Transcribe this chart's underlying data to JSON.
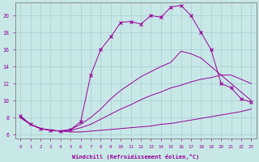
{
  "xlabel": "Windchill (Refroidissement éolien,°C)",
  "background_color": "#c8e8e8",
  "grid_color": "#a8cccc",
  "line_color": "#990099",
  "spine_color": "#888888",
  "x_ticks": [
    0,
    1,
    2,
    3,
    4,
    5,
    6,
    7,
    8,
    9,
    10,
    11,
    12,
    13,
    14,
    15,
    16,
    17,
    18,
    19,
    20,
    21,
    22,
    23
  ],
  "y_ticks": [
    6,
    8,
    10,
    12,
    14,
    16,
    18,
    20
  ],
  "ylim": [
    5.5,
    21.5
  ],
  "xlim": [
    -0.5,
    23.5
  ],
  "series": [
    {
      "x": [
        0,
        1,
        2,
        3,
        4,
        5,
        6,
        7,
        8,
        9,
        10,
        11,
        12,
        13,
        14,
        15,
        16,
        17,
        18,
        19,
        20,
        21,
        22,
        23
      ],
      "y": [
        8.0,
        7.2,
        6.7,
        6.5,
        6.4,
        6.3,
        6.3,
        6.4,
        6.5,
        6.6,
        6.7,
        6.8,
        6.9,
        7.0,
        7.2,
        7.3,
        7.5,
        7.7,
        7.9,
        8.1,
        8.3,
        8.5,
        8.7,
        9.0
      ],
      "marker": null
    },
    {
      "x": [
        0,
        1,
        2,
        3,
        4,
        5,
        6,
        7,
        8,
        9,
        10,
        11,
        12,
        13,
        14,
        15,
        16,
        17,
        18,
        19,
        20,
        21,
        22,
        23
      ],
      "y": [
        8.0,
        7.2,
        6.7,
        6.5,
        6.4,
        6.5,
        6.8,
        7.2,
        7.8,
        8.4,
        9.0,
        9.5,
        10.1,
        10.6,
        11.0,
        11.5,
        11.8,
        12.2,
        12.5,
        12.7,
        13.0,
        13.0,
        12.5,
        12.0
      ],
      "marker": null
    },
    {
      "x": [
        0,
        1,
        2,
        3,
        4,
        5,
        6,
        7,
        8,
        9,
        10,
        11,
        12,
        13,
        14,
        15,
        16,
        17,
        18,
        19,
        20,
        21,
        22,
        23
      ],
      "y": [
        8.0,
        7.2,
        6.7,
        6.5,
        6.4,
        6.6,
        7.2,
        8.0,
        9.0,
        10.2,
        11.2,
        12.0,
        12.8,
        13.4,
        14.0,
        14.5,
        15.8,
        15.5,
        15.0,
        14.0,
        13.0,
        12.0,
        11.0,
        10.0
      ],
      "marker": null
    },
    {
      "x": [
        0,
        1,
        2,
        3,
        4,
        5,
        6,
        7,
        8,
        9,
        10,
        11,
        12,
        13,
        14,
        15,
        16,
        17,
        18,
        19,
        20,
        21,
        22,
        23
      ],
      "y": [
        8.2,
        7.2,
        6.7,
        6.5,
        6.4,
        6.6,
        7.5,
        13.0,
        16.0,
        17.5,
        19.2,
        19.3,
        19.0,
        20.0,
        19.8,
        21.0,
        21.2,
        20.0,
        18.0,
        16.0,
        12.0,
        11.5,
        10.2,
        9.8
      ],
      "marker": "x"
    }
  ]
}
